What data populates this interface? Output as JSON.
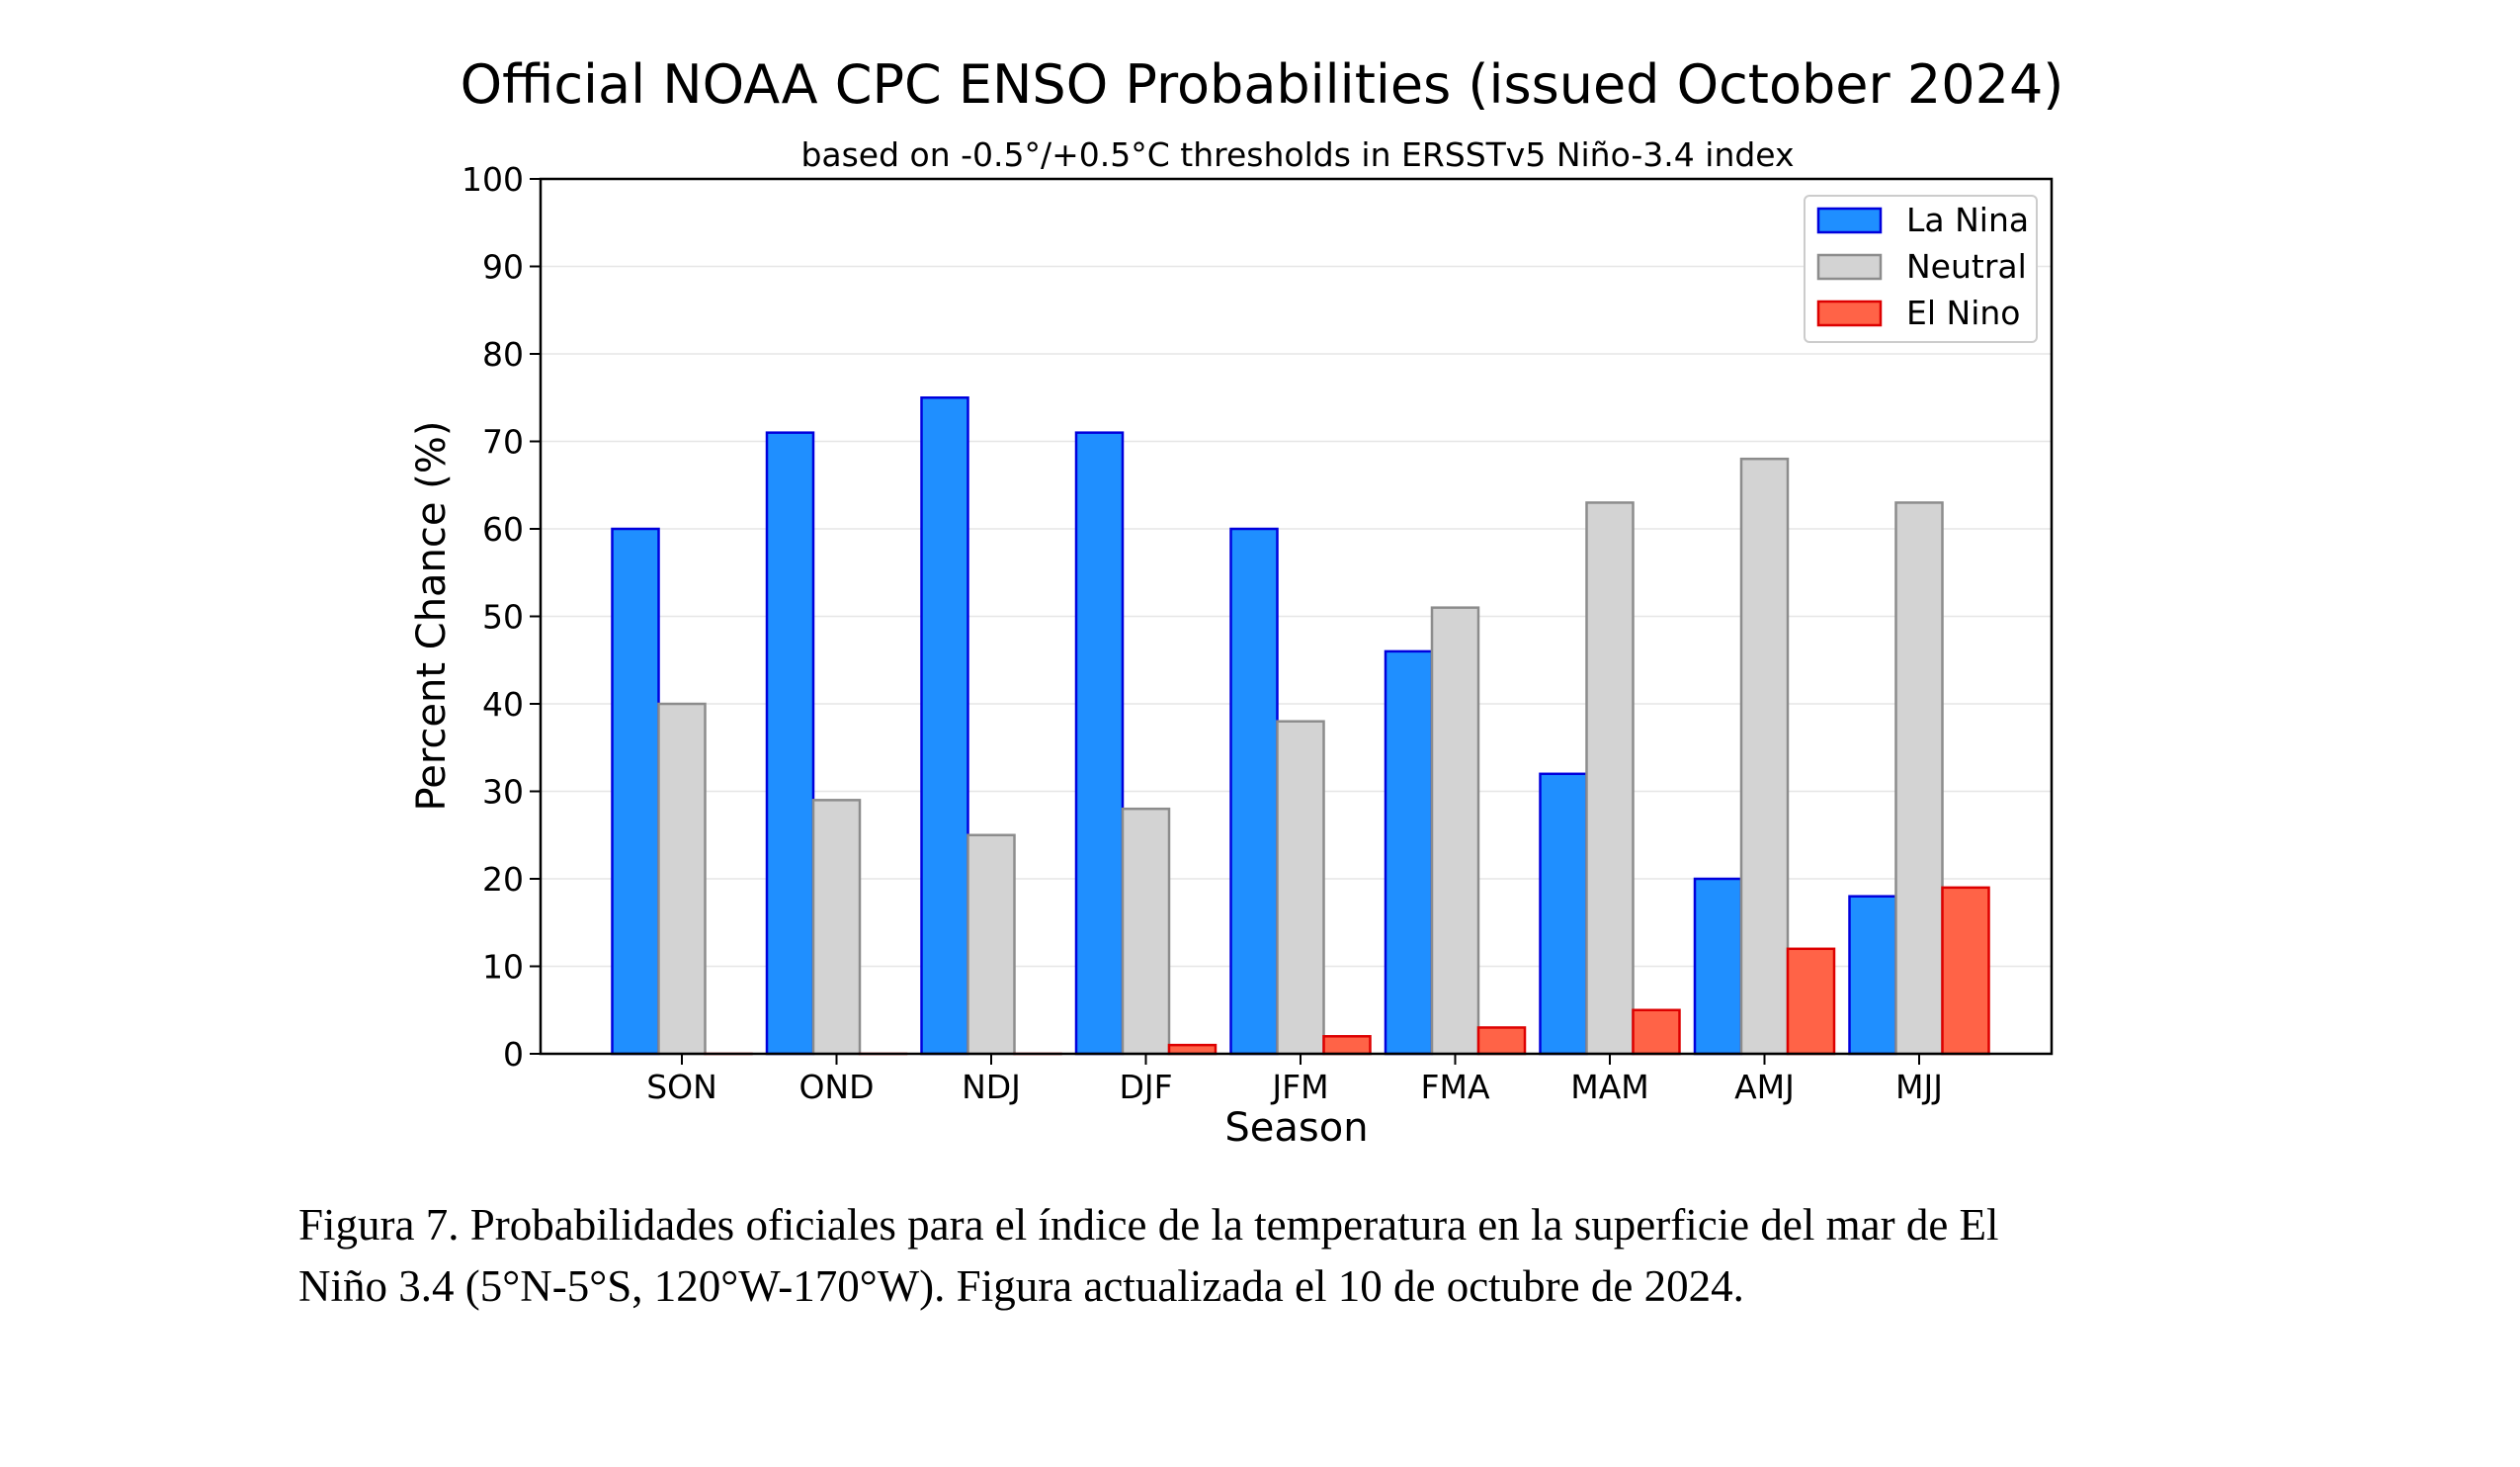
{
  "chart_data": {
    "type": "bar",
    "title": "Official NOAA CPC ENSO Probabilities (issued October 2024)",
    "subtitle": "based on -0.5°/+0.5°C thresholds in ERSSTv5 Niño-3.4 index",
    "xlabel": "Season",
    "ylabel": "Percent Chance (%)",
    "ylim": [
      0,
      100
    ],
    "yticks": [
      0,
      10,
      20,
      30,
      40,
      50,
      60,
      70,
      80,
      90,
      100
    ],
    "grid": true,
    "legend_position": "top-right",
    "categories": [
      "SON",
      "OND",
      "NDJ",
      "DJF",
      "JFM",
      "FMA",
      "MAM",
      "AMJ",
      "MJJ"
    ],
    "series": [
      {
        "name": "La Nina",
        "color": "#1f8fff",
        "edge": "#0000dd",
        "values": [
          60,
          71,
          75,
          71,
          60,
          46,
          32,
          20,
          18
        ]
      },
      {
        "name": "Neutral",
        "color": "#d3d3d3",
        "edge": "#8c8c8c",
        "values": [
          40,
          29,
          25,
          28,
          38,
          51,
          63,
          68,
          63
        ]
      },
      {
        "name": "El Nino",
        "color": "#ff6347",
        "edge": "#dd0000",
        "values": [
          0,
          0,
          0,
          1,
          2,
          3,
          5,
          12,
          19
        ]
      }
    ]
  },
  "caption": {
    "line1": "Figura 7. Probabilidades oficiales para el índice de la temperatura en la superficie del mar de El",
    "line2": "Niño 3.4  (5°N-5°S, 120°W-170°W). Figura actualizada el 10 de octubre de 2024."
  }
}
